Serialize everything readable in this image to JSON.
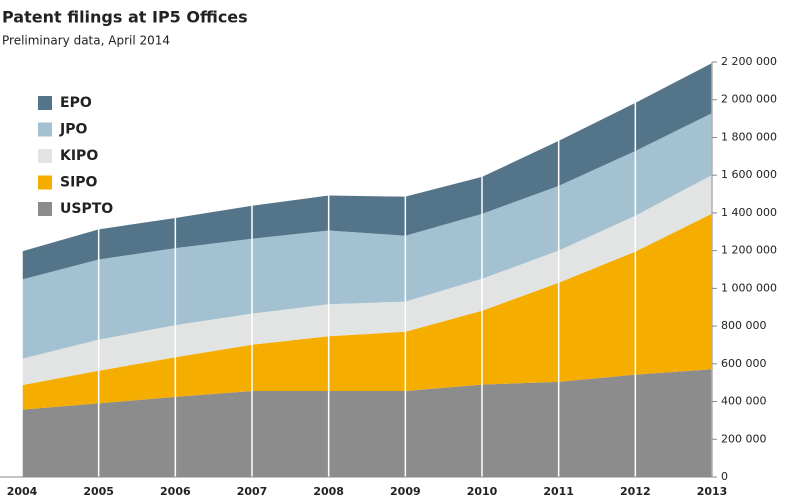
{
  "chart_data": {
    "type": "stacked_area",
    "title": "Patent filings at IP5 Offices",
    "subtitle": "Preliminary data, April 2014",
    "x": [
      2004,
      2005,
      2006,
      2007,
      2008,
      2009,
      2010,
      2011,
      2012,
      2013
    ],
    "xlim": [
      2004,
      2013
    ],
    "ylim": [
      0,
      2200000
    ],
    "yticks": [
      0,
      {
        "value": 200000,
        "label": "200 000"
      },
      {
        "value": 400000,
        "label": "400 000"
      },
      {
        "value": 600000,
        "label": "600 000"
      },
      {
        "value": 800000,
        "label": "800 000"
      },
      {
        "value": 1000000,
        "label": "1 000 000"
      },
      {
        "value": 1200000,
        "label": "1 200 000"
      },
      {
        "value": 1400000,
        "label": "1 400 000"
      },
      {
        "value": 1600000,
        "label": "1 600 000"
      },
      {
        "value": 1800000,
        "label": "1 800 000"
      },
      {
        "value": 2000000,
        "label": "2 000 000"
      },
      {
        "value": 2200000,
        "label": "2 200 000"
      }
    ],
    "grid": true,
    "legend": "top-left",
    "series": [
      {
        "name": "EPO",
        "color": "#537489",
        "values": [
          149000,
          160000,
          160000,
          175000,
          185000,
          207000,
          196000,
          239000,
          255000,
          265000
        ]
      },
      {
        "name": "JPO",
        "color": "#a3c1d1",
        "values": [
          420000,
          425000,
          408000,
          397000,
          391000,
          349000,
          344000,
          343000,
          343000,
          328000
        ]
      },
      {
        "name": "KIPO",
        "color": "#e2e3e3",
        "values": [
          140000,
          165000,
          170000,
          165000,
          170000,
          160000,
          170000,
          170000,
          190000,
          205000
        ]
      },
      {
        "name": "SIPO",
        "color": "#f5ae00",
        "values": [
          130000,
          173000,
          210000,
          245000,
          290000,
          314000,
          391000,
          526000,
          652000,
          825000
        ]
      },
      {
        "name": "USPTO",
        "color": "#8c8c8c",
        "values": [
          357000,
          390000,
          425000,
          456000,
          456000,
          456000,
          490000,
          504000,
          543000,
          571000
        ]
      }
    ]
  }
}
